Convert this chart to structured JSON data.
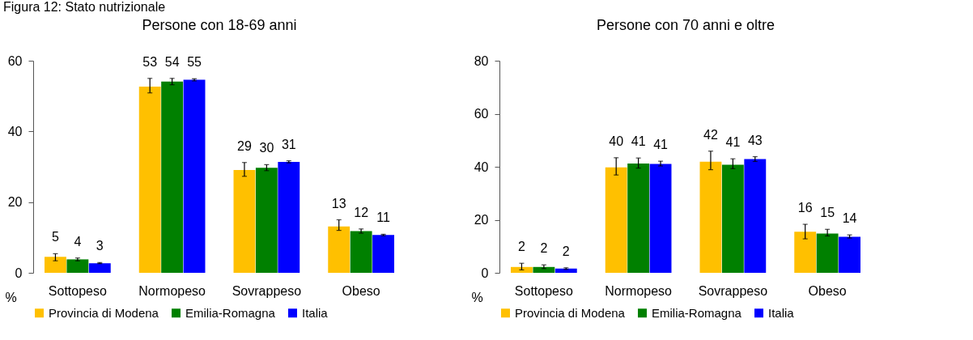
{
  "chart_data": [
    {
      "type": "bar",
      "title": "Persone con 18-69 anni",
      "ylabel": "%",
      "annotations": [
        "Figura 12: Stato nutrizionale"
      ],
      "categories": [
        "Sottopeso",
        "Normopeso",
        "Sovrappeso",
        "Obeso"
      ],
      "ylim": [
        0,
        60
      ],
      "yticks": [
        0,
        20,
        40,
        60
      ],
      "grid": false,
      "legend": "bottom",
      "series": [
        {
          "name": "Provincia di Modena",
          "color": "#ffc000",
          "values": [
            4.5,
            52.7,
            29.1,
            13.1
          ],
          "errors": [
            [
              3.4,
              5.4
            ],
            [
              50.9,
              55.0
            ],
            [
              27.3,
              31.2
            ],
            [
              12.0,
              15.0
            ]
          ],
          "value_labels": [
            "5",
            "53",
            "29",
            "13"
          ]
        },
        {
          "name": "Emilia-Romagna",
          "color": "#008000",
          "values": [
            3.8,
            54.1,
            29.7,
            11.8
          ],
          "errors": [
            [
              3.4,
              4.2
            ],
            [
              53.2,
              55.0
            ],
            [
              28.9,
              30.6
            ],
            [
              11.2,
              12.4
            ]
          ],
          "value_labels": [
            "4",
            "54",
            "30",
            "12"
          ]
        },
        {
          "name": "Italia",
          "color": "#0000ff",
          "values": [
            2.7,
            54.6,
            31.4,
            10.7
          ],
          "errors": [
            [
              2.6,
              2.9
            ],
            [
              54.3,
              54.9
            ],
            [
              31.1,
              31.7
            ],
            [
              10.5,
              10.9
            ]
          ],
          "value_labels": [
            "3",
            "55",
            "31",
            "11"
          ]
        }
      ]
    },
    {
      "type": "bar",
      "title": "Persone con 70 anni e oltre",
      "ylabel": "%",
      "categories": [
        "Sottopeso",
        "Normopeso",
        "Sovrappeso",
        "Obeso"
      ],
      "ylim": [
        0,
        80
      ],
      "yticks": [
        0,
        20,
        40,
        60,
        80
      ],
      "grid": false,
      "legend": "bottom",
      "series": [
        {
          "name": "Provincia di Modena",
          "color": "#ffc000",
          "values": [
            2.2,
            39.8,
            41.9,
            15.5
          ],
          "errors": [
            [
              1.1,
              3.6
            ],
            [
              36.9,
              43.4
            ],
            [
              38.9,
              45.9
            ],
            [
              12.8,
              18.3
            ]
          ],
          "value_labels": [
            "2",
            "40",
            "42",
            "16"
          ]
        },
        {
          "name": "Emilia-Romagna",
          "color": "#008000",
          "values": [
            2.2,
            41.2,
            40.8,
            14.8
          ],
          "errors": [
            [
              1.6,
              3.0
            ],
            [
              39.5,
              43.3
            ],
            [
              39.3,
              43.0
            ],
            [
              13.9,
              16.4
            ]
          ],
          "value_labels": [
            "2",
            "41",
            "41",
            "15"
          ]
        },
        {
          "name": "Italia",
          "color": "#0000ff",
          "values": [
            1.6,
            41.1,
            42.9,
            13.6
          ],
          "errors": [
            [
              1.3,
              1.9
            ],
            [
              40.3,
              42.1
            ],
            [
              42.0,
              43.8
            ],
            [
              13.1,
              14.3
            ]
          ],
          "value_labels": [
            "2",
            "41",
            "43",
            "14"
          ]
        }
      ]
    }
  ]
}
